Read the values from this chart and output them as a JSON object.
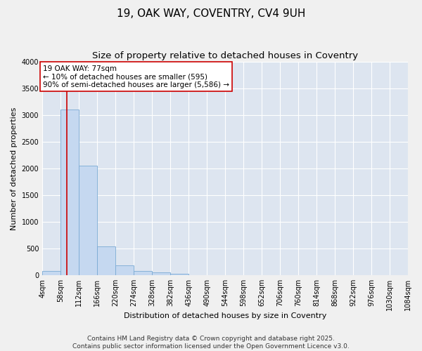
{
  "title_line1": "19, OAK WAY, COVENTRY, CV4 9UH",
  "title_line2": "Size of property relative to detached houses in Coventry",
  "xlabel": "Distribution of detached houses by size in Coventry",
  "ylabel": "Number of detached properties",
  "bar_edges": [
    4,
    58,
    112,
    166,
    220,
    274,
    328,
    382,
    436,
    490,
    544,
    598,
    652,
    706,
    760,
    814,
    868,
    922,
    976,
    1030,
    1084
  ],
  "bar_heights": [
    80,
    3100,
    2050,
    540,
    190,
    80,
    60,
    30,
    0,
    0,
    0,
    0,
    0,
    0,
    0,
    0,
    0,
    0,
    0,
    0
  ],
  "bar_color": "#c5d8f0",
  "bar_edgecolor": "#7aaad4",
  "plot_bg_color": "#dde5f0",
  "fig_bg_color": "#f0f0f0",
  "grid_color": "#ffffff",
  "property_line_x": 77,
  "property_line_color": "#cc0000",
  "annotation_text": "19 OAK WAY: 77sqm\n← 10% of detached houses are smaller (595)\n90% of semi-detached houses are larger (5,586) →",
  "annotation_box_facecolor": "#ffffff",
  "annotation_box_edgecolor": "#cc0000",
  "ylim": [
    0,
    4000
  ],
  "yticks": [
    0,
    500,
    1000,
    1500,
    2000,
    2500,
    3000,
    3500,
    4000
  ],
  "footer_line1": "Contains HM Land Registry data © Crown copyright and database right 2025.",
  "footer_line2": "Contains public sector information licensed under the Open Government Licence v3.0.",
  "title_fontsize": 11,
  "subtitle_fontsize": 9.5,
  "axis_label_fontsize": 8,
  "tick_fontsize": 7,
  "annotation_fontsize": 7.5,
  "footer_fontsize": 6.5
}
